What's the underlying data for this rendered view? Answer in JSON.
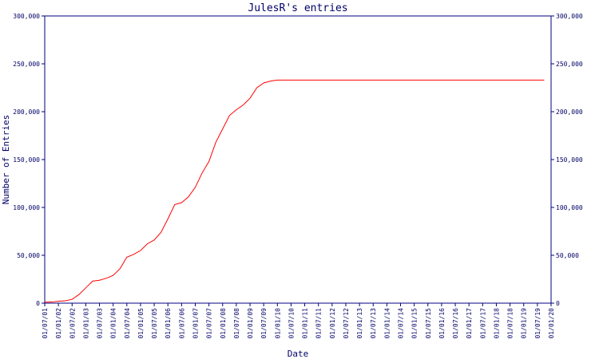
{
  "colors": {
    "axis": "#000080",
    "series": "#ff0000",
    "text": "#000066",
    "background": "#ffffff"
  },
  "chart_data": {
    "type": "line",
    "title": "JulesR's entries",
    "xlabel": "Date",
    "ylabel": "Number of Entries",
    "ylim": [
      0,
      300000
    ],
    "y_ticks": [
      0,
      50000,
      100000,
      150000,
      200000,
      250000,
      300000
    ],
    "y_tick_labels": [
      "0",
      "50,000",
      "100,000",
      "150,000",
      "200,000",
      "250,000",
      "300,000"
    ],
    "right_axis": true,
    "grid": false,
    "legend": "none",
    "x_tick_labels": [
      "01/07/01",
      "01/01/02",
      "01/07/02",
      "01/01/03",
      "01/07/03",
      "01/01/04",
      "01/07/04",
      "01/01/05",
      "01/07/05",
      "01/01/06",
      "01/07/06",
      "01/01/07",
      "01/07/07",
      "01/01/08",
      "01/07/08",
      "01/01/09",
      "01/07/09",
      "01/01/10",
      "01/07/10",
      "01/01/11",
      "01/07/11",
      "01/01/12",
      "01/07/12",
      "01/01/13",
      "01/07/13",
      "01/01/14",
      "01/07/14",
      "01/01/15",
      "01/07/15",
      "01/01/16",
      "01/07/16",
      "01/01/17",
      "01/07/17",
      "01/01/18",
      "01/07/18",
      "01/01/19",
      "01/07/19",
      "01/01/20"
    ],
    "series": [
      {
        "color": "#ff0000",
        "points": [
          {
            "x": "2001-07-01",
            "y": 1000
          },
          {
            "x": "2001-10-01",
            "y": 1200
          },
          {
            "x": "2002-01-01",
            "y": 2000
          },
          {
            "x": "2002-04-01",
            "y": 2500
          },
          {
            "x": "2002-07-01",
            "y": 4000
          },
          {
            "x": "2002-10-01",
            "y": 9000
          },
          {
            "x": "2003-01-01",
            "y": 16000
          },
          {
            "x": "2003-04-01",
            "y": 23000
          },
          {
            "x": "2003-07-01",
            "y": 24000
          },
          {
            "x": "2003-10-01",
            "y": 26000
          },
          {
            "x": "2004-01-01",
            "y": 29000
          },
          {
            "x": "2004-04-01",
            "y": 36000
          },
          {
            "x": "2004-07-01",
            "y": 48000
          },
          {
            "x": "2004-10-01",
            "y": 51000
          },
          {
            "x": "2005-01-01",
            "y": 55000
          },
          {
            "x": "2005-04-01",
            "y": 62000
          },
          {
            "x": "2005-07-01",
            "y": 66000
          },
          {
            "x": "2005-10-01",
            "y": 74000
          },
          {
            "x": "2006-01-01",
            "y": 88000
          },
          {
            "x": "2006-04-01",
            "y": 103000
          },
          {
            "x": "2006-07-01",
            "y": 105000
          },
          {
            "x": "2006-10-01",
            "y": 111000
          },
          {
            "x": "2007-01-01",
            "y": 121000
          },
          {
            "x": "2007-04-01",
            "y": 136000
          },
          {
            "x": "2007-07-01",
            "y": 148000
          },
          {
            "x": "2007-10-01",
            "y": 168000
          },
          {
            "x": "2008-01-01",
            "y": 182000
          },
          {
            "x": "2008-04-01",
            "y": 196000
          },
          {
            "x": "2008-07-01",
            "y": 202000
          },
          {
            "x": "2008-10-01",
            "y": 207000
          },
          {
            "x": "2009-01-01",
            "y": 214000
          },
          {
            "x": "2009-04-01",
            "y": 225000
          },
          {
            "x": "2009-07-01",
            "y": 230000
          },
          {
            "x": "2009-10-01",
            "y": 232000
          },
          {
            "x": "2010-01-01",
            "y": 233000
          },
          {
            "x": "2019-10-01",
            "y": 233000
          }
        ]
      }
    ]
  }
}
